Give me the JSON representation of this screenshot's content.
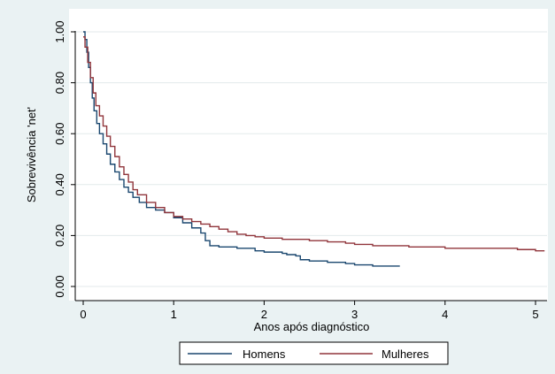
{
  "chart_data": {
    "type": "line",
    "title": "",
    "xlabel": "Anos após diagnóstico",
    "ylabel": "Sobrevivência 'net'",
    "xlim": [
      0,
      5.15
    ],
    "ylim": [
      0,
      1.0
    ],
    "xticks": [
      0,
      1,
      2,
      3,
      4,
      5
    ],
    "xtick_labels": [
      "0",
      "1",
      "2",
      "3",
      "4",
      "5"
    ],
    "yticks": [
      0,
      0.2,
      0.4,
      0.6,
      0.8,
      1.0
    ],
    "ytick_labels": [
      "0.00",
      "0.20",
      "0.40",
      "0.60",
      "0.80",
      "1.00"
    ],
    "grid": true,
    "legend_position": "bottom",
    "series": [
      {
        "name": "Homens",
        "color": "#1a476f",
        "step": true,
        "points": [
          [
            0,
            1.0
          ],
          [
            0.02,
            0.97
          ],
          [
            0.04,
            0.92
          ],
          [
            0.06,
            0.86
          ],
          [
            0.08,
            0.8
          ],
          [
            0.1,
            0.74
          ],
          [
            0.12,
            0.69
          ],
          [
            0.15,
            0.64
          ],
          [
            0.18,
            0.6
          ],
          [
            0.22,
            0.56
          ],
          [
            0.26,
            0.52
          ],
          [
            0.3,
            0.48
          ],
          [
            0.35,
            0.45
          ],
          [
            0.4,
            0.42
          ],
          [
            0.45,
            0.39
          ],
          [
            0.5,
            0.37
          ],
          [
            0.55,
            0.35
          ],
          [
            0.62,
            0.33
          ],
          [
            0.7,
            0.31
          ],
          [
            0.8,
            0.3
          ],
          [
            0.9,
            0.29
          ],
          [
            1.0,
            0.27
          ],
          [
            1.1,
            0.25
          ],
          [
            1.2,
            0.23
          ],
          [
            1.3,
            0.21
          ],
          [
            1.35,
            0.18
          ],
          [
            1.4,
            0.16
          ],
          [
            1.5,
            0.155
          ],
          [
            1.7,
            0.15
          ],
          [
            1.9,
            0.14
          ],
          [
            2.0,
            0.135
          ],
          [
            2.2,
            0.13
          ],
          [
            2.25,
            0.125
          ],
          [
            2.35,
            0.12
          ],
          [
            2.4,
            0.105
          ],
          [
            2.5,
            0.1
          ],
          [
            2.7,
            0.095
          ],
          [
            2.9,
            0.09
          ],
          [
            3.0,
            0.085
          ],
          [
            3.2,
            0.08
          ],
          [
            3.5,
            0.08
          ]
        ]
      },
      {
        "name": "Mulheres",
        "color": "#90353b",
        "step": true,
        "points": [
          [
            0,
            0.98
          ],
          [
            0.02,
            0.94
          ],
          [
            0.05,
            0.88
          ],
          [
            0.08,
            0.82
          ],
          [
            0.11,
            0.76
          ],
          [
            0.14,
            0.71
          ],
          [
            0.18,
            0.67
          ],
          [
            0.22,
            0.63
          ],
          [
            0.26,
            0.59
          ],
          [
            0.3,
            0.55
          ],
          [
            0.35,
            0.51
          ],
          [
            0.4,
            0.47
          ],
          [
            0.45,
            0.44
          ],
          [
            0.5,
            0.41
          ],
          [
            0.55,
            0.38
          ],
          [
            0.6,
            0.36
          ],
          [
            0.7,
            0.33
          ],
          [
            0.8,
            0.31
          ],
          [
            0.9,
            0.29
          ],
          [
            1.0,
            0.275
          ],
          [
            1.1,
            0.265
          ],
          [
            1.2,
            0.255
          ],
          [
            1.3,
            0.245
          ],
          [
            1.4,
            0.235
          ],
          [
            1.5,
            0.225
          ],
          [
            1.6,
            0.215
          ],
          [
            1.7,
            0.205
          ],
          [
            1.8,
            0.2
          ],
          [
            1.9,
            0.195
          ],
          [
            2.0,
            0.19
          ],
          [
            2.2,
            0.185
          ],
          [
            2.5,
            0.18
          ],
          [
            2.7,
            0.175
          ],
          [
            2.9,
            0.17
          ],
          [
            3.0,
            0.165
          ],
          [
            3.2,
            0.16
          ],
          [
            3.4,
            0.16
          ],
          [
            3.6,
            0.155
          ],
          [
            3.8,
            0.155
          ],
          [
            4.0,
            0.15
          ],
          [
            4.5,
            0.15
          ],
          [
            4.8,
            0.145
          ],
          [
            5.0,
            0.14
          ],
          [
            5.1,
            0.14
          ]
        ]
      }
    ]
  }
}
